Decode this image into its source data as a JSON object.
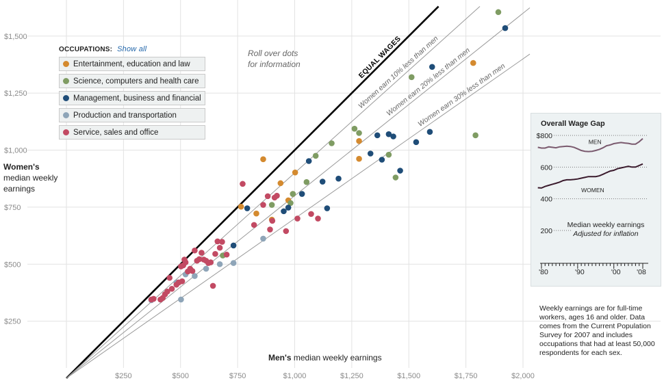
{
  "chart_data": {
    "type": "scatter",
    "xlabel_bold": "Men's",
    "xlabel_rest": " median weekly earnings",
    "ylabel_bold": "Women's",
    "ylabel_rest": "median weekly earnings",
    "xlim": [
      0,
      2000
    ],
    "ylim": [
      0,
      1650
    ],
    "grid": true,
    "x_ticks": [
      250,
      500,
      750,
      1000,
      1250,
      1500,
      1750,
      2000
    ],
    "x_tick_labels": [
      "$250",
      "$500",
      "$750",
      "$1,000",
      "$1,250",
      "$1,500",
      "$1,750",
      "$2,000"
    ],
    "y_ticks": [
      250,
      500,
      750,
      1000,
      1250,
      1500
    ],
    "y_tick_labels": [
      "$250",
      "$500",
      "$750",
      "$1,000",
      "$1,250",
      "$1,500"
    ],
    "reference_lines": [
      {
        "label": "EQUAL WAGES",
        "ratio": 1.0
      },
      {
        "label": "Women earn 10% less than men",
        "ratio": 0.9
      },
      {
        "label": "Women earn 20% less than men",
        "ratio": 0.8
      },
      {
        "label": "Women earn 30% less than men",
        "ratio": 0.7
      }
    ],
    "groups": [
      {
        "name": "Entertainment, education and law",
        "color": "#d48a2f",
        "points": [
          [
            765,
            752
          ],
          [
            832,
            722
          ],
          [
            862,
            960
          ],
          [
            938,
            855
          ],
          [
            972,
            780
          ],
          [
            992,
            808
          ],
          [
            1002,
            902
          ],
          [
            900,
            695
          ],
          [
            1282,
            962
          ],
          [
            1282,
            1040
          ],
          [
            1782,
            1382
          ]
        ]
      },
      {
        "name": "Science, computers and health care",
        "color": "#7f9c63",
        "points": [
          [
            685,
            538
          ],
          [
            900,
            760
          ],
          [
            982,
            768
          ],
          [
            992,
            808
          ],
          [
            1052,
            860
          ],
          [
            1092,
            975
          ],
          [
            1162,
            1030
          ],
          [
            1262,
            1094
          ],
          [
            1282,
            1075
          ],
          [
            1412,
            980
          ],
          [
            1442,
            880
          ],
          [
            1512,
            1320
          ],
          [
            1892,
            1605
          ],
          [
            1792,
            1065
          ]
        ]
      },
      {
        "name": "Management, business and financial",
        "color": "#1f4d78",
        "points": [
          [
            732,
            582
          ],
          [
            792,
            745
          ],
          [
            952,
            732
          ],
          [
            972,
            748
          ],
          [
            1032,
            808
          ],
          [
            1062,
            952
          ],
          [
            1122,
            862
          ],
          [
            1142,
            745
          ],
          [
            1192,
            875
          ],
          [
            1332,
            985
          ],
          [
            1362,
            1065
          ],
          [
            1382,
            958
          ],
          [
            1412,
            1070
          ],
          [
            1432,
            1060
          ],
          [
            1462,
            910
          ],
          [
            1532,
            1035
          ],
          [
            1592,
            1080
          ],
          [
            1602,
            1365
          ],
          [
            1922,
            1535
          ]
        ]
      },
      {
        "name": "Production and transportation",
        "color": "#8ea5b8",
        "points": [
          [
            372,
            342
          ],
          [
            482,
            420
          ],
          [
            502,
            345
          ],
          [
            522,
            455
          ],
          [
            562,
            448
          ],
          [
            612,
            480
          ],
          [
            672,
            500
          ],
          [
            732,
            505
          ],
          [
            862,
            612
          ]
        ]
      },
      {
        "name": "Service, sales and office",
        "color": "#c24a63",
        "points": [
          [
            372,
            345
          ],
          [
            382,
            348
          ],
          [
            412,
            345
          ],
          [
            422,
            352
          ],
          [
            432,
            368
          ],
          [
            442,
            380
          ],
          [
            452,
            440
          ],
          [
            462,
            392
          ],
          [
            482,
            410
          ],
          [
            492,
            420
          ],
          [
            502,
            490
          ],
          [
            507,
            425
          ],
          [
            512,
            495
          ],
          [
            517,
            520
          ],
          [
            522,
            508
          ],
          [
            532,
            468
          ],
          [
            542,
            480
          ],
          [
            552,
            470
          ],
          [
            562,
            560
          ],
          [
            572,
            515
          ],
          [
            582,
            522
          ],
          [
            592,
            550
          ],
          [
            602,
            520
          ],
          [
            612,
            515
          ],
          [
            622,
            505
          ],
          [
            632,
            508
          ],
          [
            642,
            405
          ],
          [
            652,
            545
          ],
          [
            662,
            600
          ],
          [
            672,
            572
          ],
          [
            682,
            598
          ],
          [
            702,
            542
          ],
          [
            772,
            852
          ],
          [
            822,
            672
          ],
          [
            862,
            760
          ],
          [
            882,
            798
          ],
          [
            892,
            652
          ],
          [
            902,
            690
          ],
          [
            912,
            792
          ],
          [
            922,
            800
          ],
          [
            962,
            645
          ],
          [
            1012,
            700
          ],
          [
            1072,
            720
          ],
          [
            1102,
            700
          ]
        ]
      }
    ]
  },
  "legend": {
    "heading": "OCCUPATIONS:",
    "show_all": "Show all",
    "items": [
      {
        "label": "Entertainment, education and law",
        "color": "#d48a2f"
      },
      {
        "label": "Science, computers and health care",
        "color": "#7f9c63"
      },
      {
        "label": "Management, business and financial",
        "color": "#1f4d78"
      },
      {
        "label": "Production and transportation",
        "color": "#8ea5b8"
      },
      {
        "label": "Service, sales and office",
        "color": "#c24a63"
      }
    ]
  },
  "rollover_note": "Roll over dots for information",
  "wage_gap": {
    "title": "Overall Wage Gap",
    "y_ticks": [
      400,
      600,
      800
    ],
    "y_tick_labels": [
      "400",
      "600",
      "$800"
    ],
    "extra_tick": "200",
    "x_tick_labels": [
      "'80",
      "'90",
      "'00",
      "'08"
    ],
    "x_tick_years": [
      1980,
      1990,
      2000,
      2008
    ],
    "caption": "Median weekly earnings",
    "caption_sub": "Adjusted for inflation",
    "men_label": "MEN",
    "women_label": "WOMEN",
    "men_color": "#7a5a6e",
    "women_color": "#3a1a2c",
    "years": [
      1979,
      1980,
      1981,
      1982,
      1983,
      1984,
      1985,
      1986,
      1987,
      1988,
      1989,
      1990,
      1991,
      1992,
      1993,
      1994,
      1995,
      1996,
      1997,
      1998,
      1999,
      2000,
      2001,
      2002,
      2003,
      2004,
      2005,
      2006,
      2007,
      2008
    ],
    "men": [
      725,
      720,
      720,
      728,
      725,
      722,
      728,
      730,
      732,
      730,
      725,
      715,
      705,
      700,
      698,
      700,
      705,
      712,
      722,
      735,
      740,
      748,
      752,
      755,
      752,
      750,
      745,
      745,
      760,
      780
    ],
    "women": [
      470,
      468,
      478,
      485,
      492,
      498,
      505,
      515,
      520,
      520,
      522,
      525,
      530,
      535,
      540,
      540,
      540,
      545,
      555,
      565,
      575,
      580,
      590,
      595,
      600,
      605,
      600,
      600,
      610,
      620
    ]
  },
  "footnote": "Weekly earnings are for full-time workers, ages 16 and older. Data comes from the Current Population Survey for 2007 and includes occupations that had at least 50,000 respondents for each sex."
}
